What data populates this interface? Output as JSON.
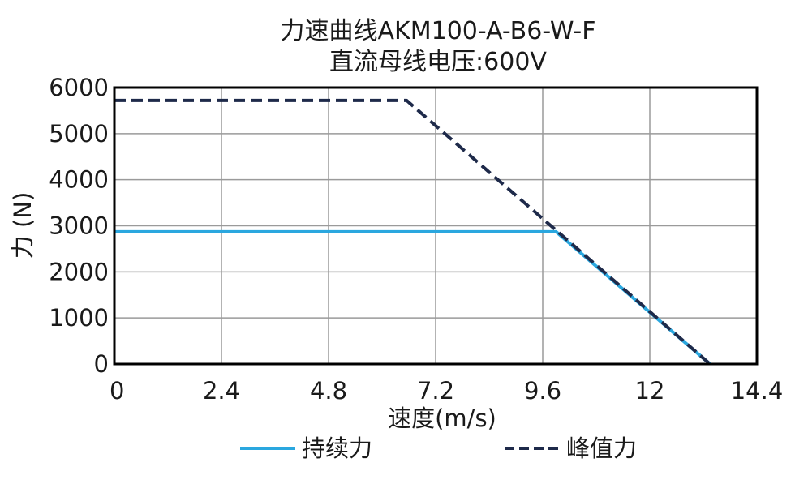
{
  "chart_data": {
    "type": "line",
    "title": "力速曲线AKM100-A-B6-W-F",
    "subtitle": "直流母线电压:600V",
    "xlabel": "速度(m/s)",
    "ylabel": "力 (N)",
    "xlim": [
      0,
      14.4
    ],
    "ylim": [
      0,
      6000
    ],
    "xticks": [
      "0",
      "2.4",
      "4.8",
      "7.2",
      "9.6",
      "12",
      "14.4"
    ],
    "yticks": [
      "0",
      "1000",
      "2000",
      "3000",
      "4000",
      "5000",
      "6000"
    ],
    "grid": true,
    "legend_position": "bottom",
    "series": [
      {
        "name": "持续力",
        "style": "solid",
        "color": "#2aa7df",
        "x": [
          0,
          9.9,
          13.35
        ],
        "y": [
          2870,
          2870,
          0
        ]
      },
      {
        "name": "峰值力",
        "style": "dashed",
        "color": "#1e2a4a",
        "x": [
          0,
          6.55,
          13.35
        ],
        "y": [
          5720,
          5720,
          0
        ]
      }
    ]
  }
}
